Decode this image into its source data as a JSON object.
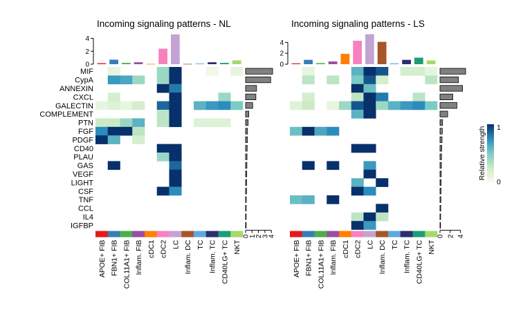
{
  "chart_data": {
    "type": "heatmap",
    "pathways": [
      "MIF",
      "CypA",
      "ANNEXIN",
      "CXCL",
      "GALECTIN",
      "COMPLEMENT",
      "PTN",
      "FGF",
      "PDGF",
      "CD40",
      "PLAU",
      "GAS",
      "VEGF",
      "LIGHT",
      "CSF",
      "TNF",
      "CCL",
      "IL4",
      "IGFBP"
    ],
    "cell_groups": [
      "APOE+ FIB",
      "FBN1+ FIB",
      "COL11A1+ FIB",
      "Inflam. FIB",
      "cDC1",
      "cDC2",
      "LC",
      "Inflam. DC",
      "TC",
      "Inflam. TC",
      "CD40LG+ TC",
      "NKT"
    ],
    "group_colors": [
      "#e41a1c",
      "#377eb8",
      "#4daf4a",
      "#984ea3",
      "#ff7f00",
      "#f781bf",
      "#c4a3d4",
      "#a65628",
      "#5fa8dd",
      "#2d2f6e",
      "#1b9e77",
      "#a6d96a"
    ],
    "legend": {
      "title": "Relative strength",
      "min_label": "0",
      "max_label": "1",
      "colors": [
        "#f7fcf0",
        "#ccebc5",
        "#7bccc4",
        "#2b8cbe",
        "#08306b"
      ]
    },
    "panels": [
      {
        "title": "Incoming signaling patterns - NL",
        "top_bar_values": [
          0.15,
          0.7,
          0.2,
          0.3,
          0.05,
          2.4,
          4.6,
          0.05,
          0.1,
          0.3,
          0.2,
          0.6
        ],
        "top_axis": {
          "ylim": [
            0,
            4.8
          ],
          "ticks": [
            0,
            2,
            4
          ]
        },
        "side_bar_values": [
          4.2,
          3.9,
          1.7,
          1.6,
          1.1,
          0.5,
          0.4,
          0.3,
          0.28,
          0.25,
          0.22,
          0.2,
          0.18,
          0.16,
          0.14,
          0.1,
          0.08,
          0.05,
          0.03
        ],
        "side_axis": {
          "xlim": [
            0,
            4.3
          ],
          "ticks": [
            0,
            1,
            2,
            3,
            4
          ]
        },
        "matrix": [
          [
            null,
            0.1,
            null,
            null,
            null,
            0.4,
            1.0,
            null,
            null,
            0.05,
            null,
            0.1
          ],
          [
            null,
            0.7,
            0.65,
            0.4,
            null,
            0.4,
            1.0,
            null,
            null,
            null,
            null,
            null
          ],
          [
            null,
            null,
            null,
            null,
            null,
            1.0,
            0.8,
            null,
            null,
            null,
            null,
            null
          ],
          [
            null,
            0.2,
            null,
            null,
            null,
            null,
            1.0,
            null,
            null,
            null,
            0.4,
            null
          ],
          [
            0.1,
            0.15,
            0.1,
            0.2,
            null,
            0.85,
            1.0,
            null,
            0.6,
            0.7,
            0.75,
            0.5
          ],
          [
            null,
            null,
            null,
            null,
            null,
            0.3,
            1.0,
            null,
            null,
            null,
            null,
            null
          ],
          [
            0.25,
            0.25,
            0.4,
            0.6,
            null,
            0.3,
            1.0,
            null,
            0.15,
            0.15,
            0.15,
            null
          ],
          [
            0.75,
            1.0,
            1.0,
            0.3,
            null,
            null,
            null,
            null,
            null,
            null,
            null,
            null
          ],
          [
            1.0,
            0.6,
            null,
            0.2,
            null,
            null,
            null,
            null,
            null,
            null,
            null,
            null
          ],
          [
            null,
            null,
            null,
            null,
            null,
            1.0,
            1.0,
            null,
            null,
            null,
            null,
            null
          ],
          [
            null,
            null,
            null,
            null,
            null,
            0.4,
            1.0,
            null,
            null,
            null,
            null,
            null
          ],
          [
            null,
            1.0,
            null,
            null,
            null,
            null,
            0.85,
            null,
            null,
            null,
            null,
            null
          ],
          [
            null,
            null,
            null,
            null,
            null,
            null,
            1.0,
            null,
            null,
            null,
            null,
            null
          ],
          [
            null,
            null,
            null,
            null,
            null,
            null,
            1.0,
            null,
            null,
            null,
            null,
            null
          ],
          [
            null,
            null,
            null,
            null,
            null,
            1.0,
            0.75,
            null,
            null,
            null,
            null,
            null
          ],
          [
            null,
            null,
            null,
            null,
            null,
            null,
            null,
            null,
            null,
            null,
            null,
            null
          ],
          [
            null,
            null,
            null,
            null,
            null,
            null,
            null,
            null,
            null,
            null,
            null,
            null
          ],
          [
            null,
            null,
            null,
            null,
            null,
            null,
            null,
            null,
            null,
            null,
            null,
            null
          ],
          [
            null,
            null,
            null,
            null,
            null,
            null,
            null,
            null,
            null,
            null,
            null,
            null
          ]
        ]
      },
      {
        "title": "Incoming signaling patterns - LS",
        "top_bar_values": [
          0.15,
          0.8,
          0.2,
          0.5,
          1.9,
          4.3,
          5.5,
          4.1,
          0.15,
          0.8,
          1.2,
          0.7
        ],
        "top_axis": {
          "ylim": [
            0,
            5.7
          ],
          "ticks": [
            0,
            2,
            4
          ]
        },
        "side_bar_values": [
          5.0,
          3.6,
          4.4,
          2.5,
          3.3,
          1.5,
          0.5,
          0.45,
          0.4,
          0.35,
          0.3,
          0.28,
          0.25,
          0.22,
          0.2,
          0.18,
          0.15,
          0.12,
          0.1
        ],
        "side_axis": {
          "xlim": [
            0,
            5.4
          ],
          "ticks": [
            0,
            2,
            4
          ]
        },
        "matrix": [
          [
            null,
            0.1,
            null,
            null,
            null,
            0.6,
            1.0,
            0.9,
            null,
            0.2,
            0.2,
            0.1
          ],
          [
            null,
            0.3,
            null,
            0.3,
            null,
            0.5,
            0.9,
            0.2,
            null,
            null,
            null,
            0.3
          ],
          [
            null,
            null,
            null,
            null,
            null,
            1.0,
            0.55,
            null,
            null,
            null,
            null,
            null
          ],
          [
            null,
            0.2,
            null,
            null,
            null,
            0.3,
            1.0,
            0.8,
            null,
            null,
            0.3,
            null
          ],
          [
            0.15,
            0.25,
            null,
            0.1,
            0.4,
            0.9,
            1.0,
            0.4,
            0.6,
            0.7,
            0.75,
            0.5
          ],
          [
            null,
            null,
            null,
            null,
            null,
            0.6,
            1.0,
            null,
            null,
            null,
            null,
            null
          ],
          [
            null,
            null,
            null,
            null,
            null,
            null,
            null,
            null,
            null,
            null,
            null,
            null
          ],
          [
            0.55,
            1.0,
            0.65,
            0.75,
            null,
            null,
            null,
            null,
            null,
            null,
            null,
            null
          ],
          [
            null,
            null,
            null,
            null,
            null,
            null,
            null,
            null,
            null,
            null,
            null,
            null
          ],
          [
            null,
            null,
            null,
            null,
            null,
            1.0,
            1.0,
            null,
            null,
            null,
            null,
            null
          ],
          [
            null,
            null,
            null,
            null,
            null,
            null,
            null,
            null,
            null,
            null,
            null,
            null
          ],
          [
            null,
            1.0,
            null,
            1.0,
            null,
            null,
            0.7,
            null,
            null,
            null,
            null,
            null
          ],
          [
            null,
            null,
            null,
            null,
            null,
            null,
            1.0,
            null,
            null,
            null,
            null,
            null
          ],
          [
            null,
            null,
            null,
            null,
            null,
            0.6,
            null,
            1.0,
            null,
            null,
            null,
            null
          ],
          [
            null,
            null,
            null,
            null,
            null,
            1.0,
            0.75,
            null,
            null,
            null,
            null,
            null
          ],
          [
            0.55,
            0.6,
            null,
            1.0,
            null,
            null,
            null,
            null,
            null,
            null,
            null,
            null
          ],
          [
            null,
            null,
            null,
            null,
            null,
            null,
            null,
            1.0,
            null,
            null,
            null,
            null
          ],
          [
            null,
            null,
            null,
            null,
            null,
            0.3,
            1.0,
            0.3,
            null,
            null,
            null,
            null
          ],
          [
            null,
            null,
            null,
            null,
            null,
            1.0,
            0.7,
            null,
            null,
            null,
            null,
            null
          ]
        ]
      }
    ]
  }
}
